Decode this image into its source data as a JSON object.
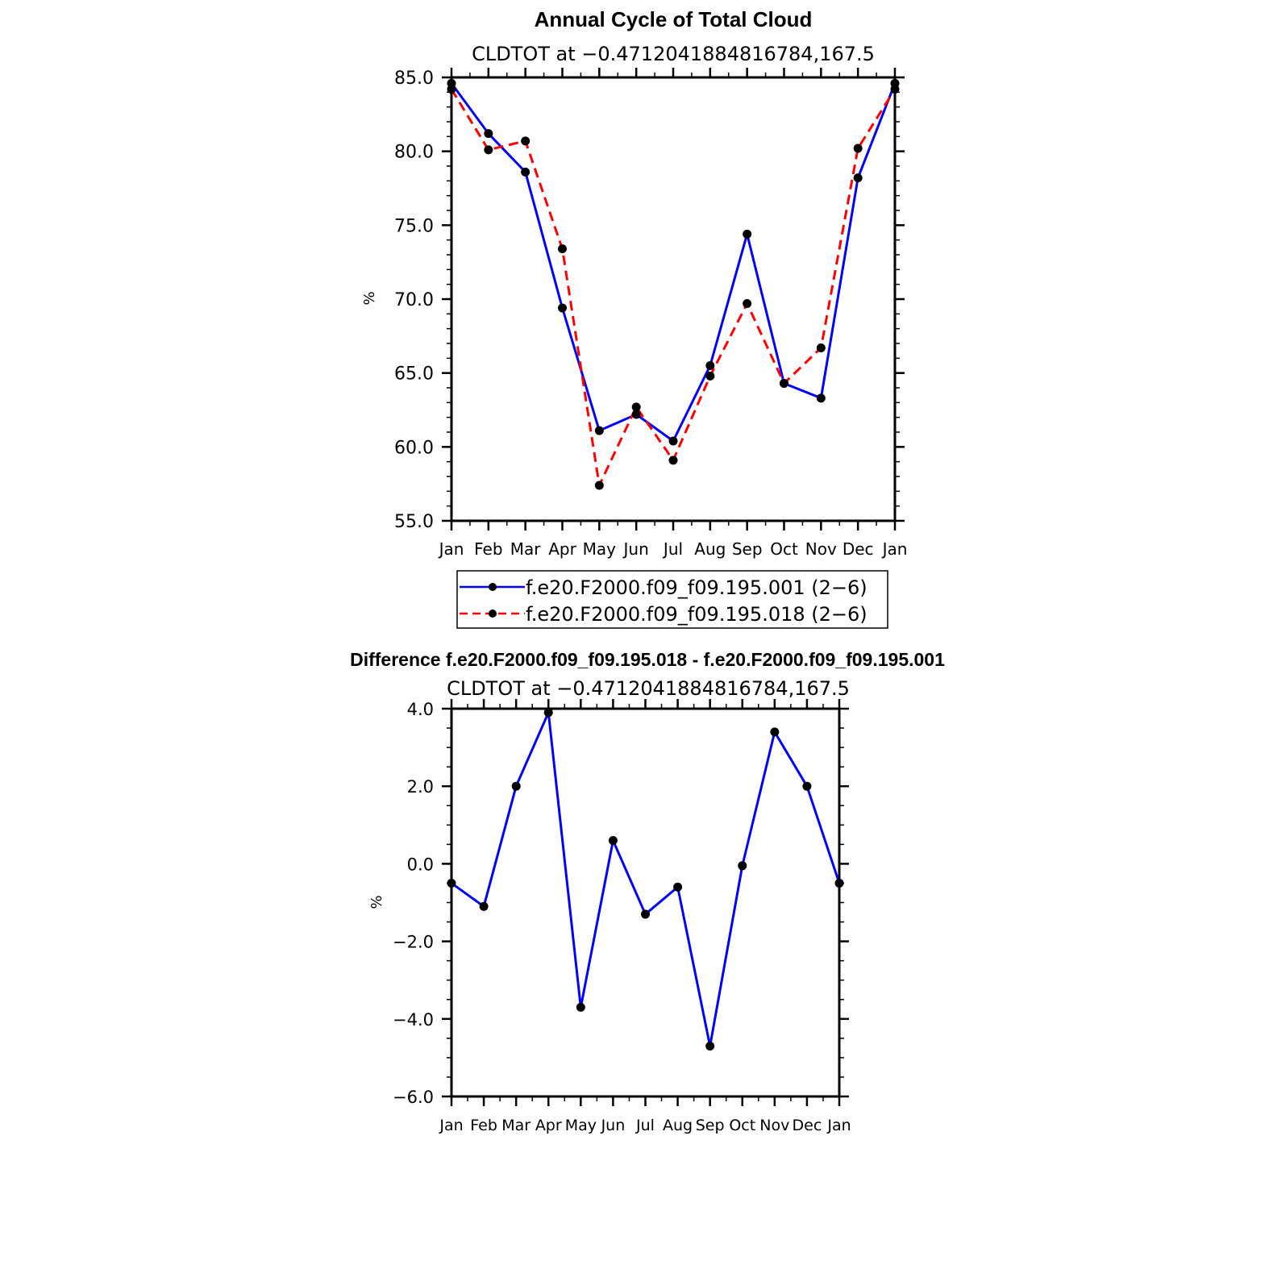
{
  "chart_data": [
    {
      "type": "line",
      "title": "Annual Cycle of Total Cloud",
      "subtitle": "CLDTOT at −0.4712041884816784,167.5",
      "xlabel": "",
      "ylabel": "%",
      "categories": [
        "Jan",
        "Feb",
        "Mar",
        "Apr",
        "May",
        "Jun",
        "Jul",
        "Aug",
        "Sep",
        "Oct",
        "Nov",
        "Dec",
        "Jan"
      ],
      "ylim": [
        55,
        85
      ],
      "yticks": [
        "55.0",
        "60.0",
        "65.0",
        "70.0",
        "75.0",
        "80.0",
        "85.0"
      ],
      "legend_position": "bottom",
      "series": [
        {
          "name": "f.e20.F2000.f09_f09.195.001 (2−6)",
          "color": "#0000ff",
          "dash": "solid",
          "values": [
            84.6,
            81.2,
            78.6,
            69.4,
            61.1,
            62.2,
            60.4,
            65.5,
            74.4,
            64.3,
            63.3,
            78.2,
            84.6
          ]
        },
        {
          "name": "f.e20.F2000.f09_f09.195.018 (2−6)",
          "color": "#ff0000",
          "dash": "dashed",
          "values": [
            84.2,
            80.1,
            80.7,
            73.4,
            57.4,
            62.7,
            59.1,
            64.8,
            69.7,
            64.3,
            66.7,
            80.2,
            84.2
          ]
        }
      ]
    },
    {
      "type": "line",
      "title": "Difference f.e20.F2000.f09_f09.195.018 - f.e20.F2000.f09_f09.195.001",
      "subtitle": "CLDTOT at −0.4712041884816784,167.5",
      "xlabel": "",
      "ylabel": "%",
      "categories": [
        "Jan",
        "Feb",
        "Mar",
        "Apr",
        "May",
        "Jun",
        "Jul",
        "Aug",
        "Sep",
        "Oct",
        "Nov",
        "Dec",
        "Jan"
      ],
      "ylim": [
        -6,
        4
      ],
      "yticks": [
        "−6.0",
        "−4.0",
        "−2.0",
        "0.0",
        "2.0",
        "4.0"
      ],
      "series": [
        {
          "name": "Difference",
          "color": "#0000ff",
          "dash": "solid",
          "values": [
            -0.5,
            -1.1,
            2.0,
            3.9,
            -3.7,
            0.6,
            -1.3,
            -0.6,
            -4.7,
            -0.05,
            3.4,
            2.0,
            -0.5
          ]
        }
      ]
    }
  ]
}
